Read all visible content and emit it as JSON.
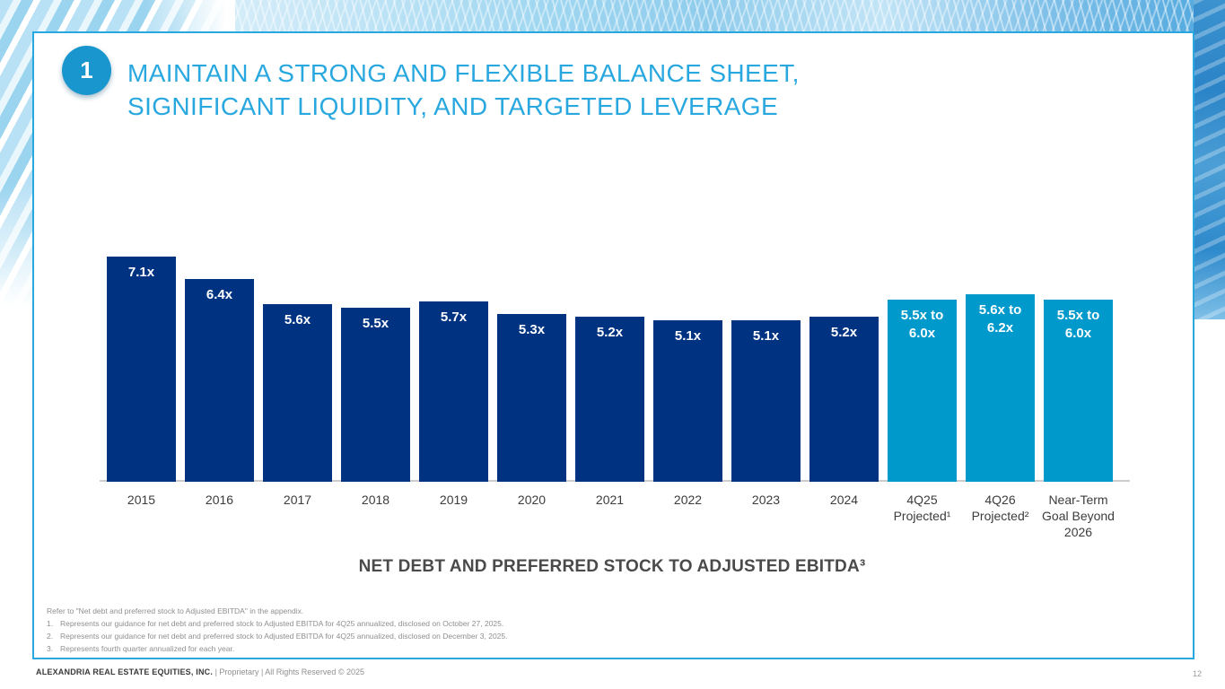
{
  "slide": {
    "badge_number": "1",
    "title_line1": "MAINTAIN A STRONG AND FLEXIBLE BALANCE SHEET,",
    "title_line2": "SIGNIFICANT LIQUIDITY, AND TARGETED LEVERAGE"
  },
  "chart_data": {
    "type": "bar",
    "title": "NET DEBT AND PREFERRED STOCK TO ADJUSTED EBITDA³",
    "xlabel": "",
    "ylabel": "",
    "ylim": [
      0,
      7.5
    ],
    "grid": false,
    "legend": "none",
    "colors": {
      "actual": "#003282",
      "projected": "#0099cc"
    },
    "bars": [
      {
        "category": "2015",
        "label": "7.1x",
        "value": 7.1,
        "type": "actual"
      },
      {
        "category": "2016",
        "label": "6.4x",
        "value": 6.4,
        "type": "actual"
      },
      {
        "category": "2017",
        "label": "5.6x",
        "value": 5.6,
        "type": "actual"
      },
      {
        "category": "2018",
        "label": "5.5x",
        "value": 5.5,
        "type": "actual"
      },
      {
        "category": "2019",
        "label": "5.7x",
        "value": 5.7,
        "type": "actual"
      },
      {
        "category": "2020",
        "label": "5.3x",
        "value": 5.3,
        "type": "actual"
      },
      {
        "category": "2021",
        "label": "5.2x",
        "value": 5.2,
        "type": "actual"
      },
      {
        "category": "2022",
        "label": "5.1x",
        "value": 5.1,
        "type": "actual"
      },
      {
        "category": "2023",
        "label": "5.1x",
        "value": 5.1,
        "type": "actual"
      },
      {
        "category": "2024",
        "label": "5.2x",
        "value": 5.2,
        "type": "actual"
      },
      {
        "category": "4Q25\nProjected¹",
        "label": "5.5x to\n6.0x",
        "value_low": 5.5,
        "value_high": 6.0,
        "value": 5.75,
        "type": "projected"
      },
      {
        "category": "4Q26\nProjected²",
        "label": "5.6x to\n6.2x",
        "value_low": 5.6,
        "value_high": 6.2,
        "value": 5.9,
        "type": "projected"
      },
      {
        "category": "Near-Term\nGoal Beyond\n2026",
        "label": "5.5x to\n6.0x",
        "value_low": 5.5,
        "value_high": 6.0,
        "value": 5.75,
        "type": "projected"
      }
    ]
  },
  "footnotes": {
    "intro": "Refer to \"Net debt and preferred stock to Adjusted EBITDA\" in the appendix.",
    "items": [
      {
        "num": "1.",
        "text": "Represents our guidance for net debt and preferred stock to Adjusted EBITDA for 4Q25 annualized, disclosed on October 27, 2025."
      },
      {
        "num": "2.",
        "text": "Represents our guidance for net debt and preferred stock to Adjusted EBITDA for 4Q25 annualized, disclosed on December 3, 2025."
      },
      {
        "num": "3.",
        "text": "Represents fourth quarter annualized for each year."
      }
    ]
  },
  "footer": {
    "company": "ALEXANDRIA REAL ESTATE EQUITIES, INC.",
    "rights": " | Proprietary | All Rights Reserved © 2025",
    "page": "12"
  }
}
